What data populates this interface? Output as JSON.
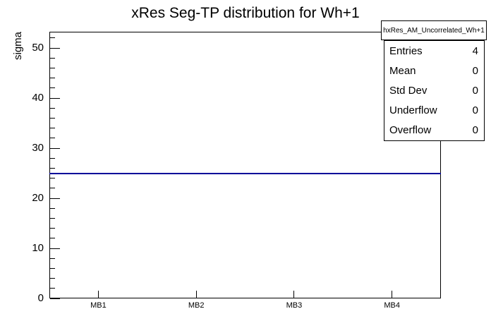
{
  "title": "xRes Seg-TP distribution for Wh+1",
  "y_axis": {
    "label": "sigma",
    "ticks": [
      "0",
      "10",
      "20",
      "30",
      "40",
      "50"
    ]
  },
  "x_axis": {
    "ticks": [
      "MB1",
      "MB2",
      "MB3",
      "MB4"
    ]
  },
  "stats_box": {
    "header": "hxRes_AM_Uncorrelated_Wh+1",
    "rows": [
      {
        "label": "Entries",
        "value": "4"
      },
      {
        "label": "Mean",
        "value": "0"
      },
      {
        "label": "Std Dev",
        "value": "0"
      },
      {
        "label": "Underflow",
        "value": "0"
      },
      {
        "label": "Overflow",
        "value": "0"
      }
    ]
  },
  "colors": {
    "line": "#000099",
    "frame": "#000000",
    "background": "#ffffff",
    "text": "#000000"
  },
  "chart_data": {
    "type": "line",
    "categories": [
      "MB1",
      "MB2",
      "MB3",
      "MB4"
    ],
    "values": [
      25,
      25,
      25,
      25
    ],
    "title": "xRes Seg-TP distribution for Wh+1",
    "xlabel": "",
    "ylabel": "sigma",
    "ylim": [
      0,
      53.25
    ],
    "y_major_ticks": [
      0,
      10,
      20,
      30,
      40,
      50
    ],
    "y_minor_tick_step": 2,
    "grid": false,
    "legend": "none",
    "line_color": "#000099"
  }
}
